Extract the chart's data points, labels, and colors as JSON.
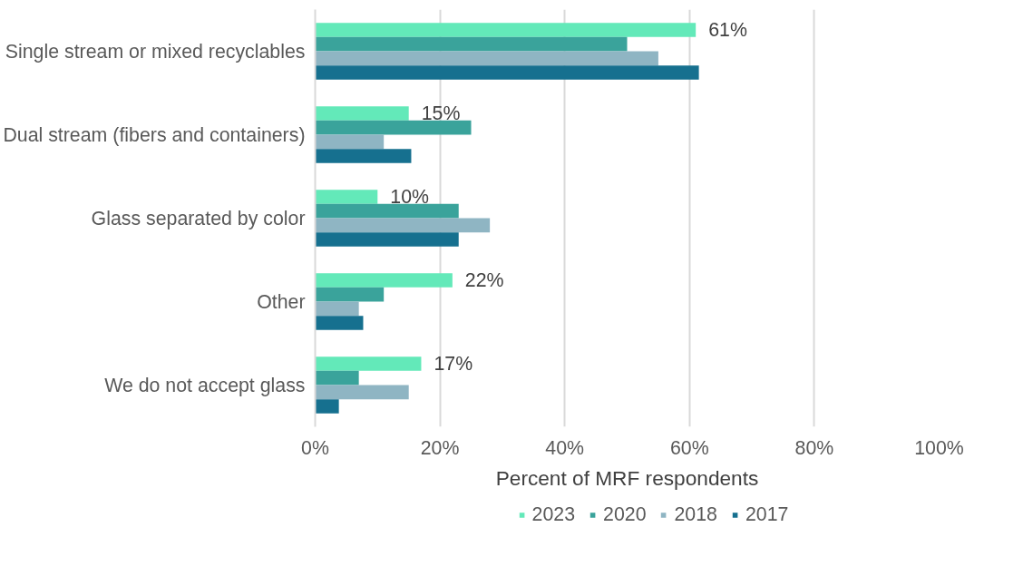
{
  "chart_data": {
    "type": "bar",
    "orientation": "horizontal",
    "xlabel": "Percent of MRF respondents",
    "categories": [
      "Single stream or mixed recyclables",
      "Dual stream (fibers and containers)",
      "Glass separated by color",
      "Other",
      "We do not accept glass"
    ],
    "series": [
      {
        "name": "2023",
        "color": "#63e9b9",
        "values": [
          61,
          15,
          10,
          22,
          17
        ],
        "value_labels": [
          "61%",
          "15%",
          "10%",
          "22%",
          "17%"
        ]
      },
      {
        "name": "2020",
        "color": "#3aa39b",
        "values": [
          50,
          25,
          23,
          11,
          7
        ]
      },
      {
        "name": "2018",
        "color": "#8fb5c3",
        "values": [
          55,
          11,
          28,
          7,
          15
        ]
      },
      {
        "name": "2017",
        "color": "#16708f",
        "values": [
          61.5,
          15.4,
          23,
          7.7,
          3.8
        ]
      }
    ],
    "xlim": [
      0,
      100
    ],
    "xticks": [
      {
        "value": 0,
        "label": "0%"
      },
      {
        "value": 20,
        "label": "20%"
      },
      {
        "value": 40,
        "label": "40%"
      },
      {
        "value": 60,
        "label": "60%"
      },
      {
        "value": 80,
        "label": "80%"
      },
      {
        "value": 100,
        "label": "100%"
      }
    ],
    "grid": "x",
    "legend": "bottom"
  }
}
